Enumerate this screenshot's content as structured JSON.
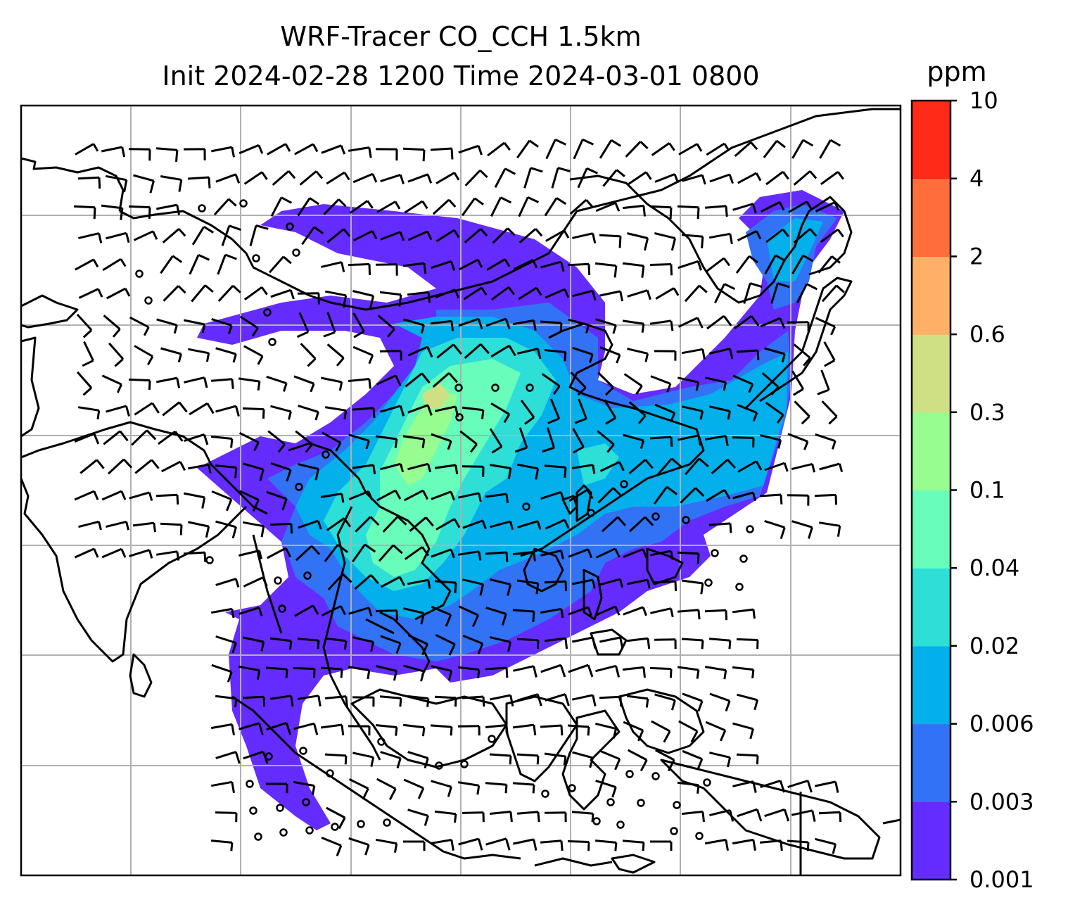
{
  "chart_data": {
    "type": "heatmap",
    "title": "WRF-Tracer CO_CCH 1.5km",
    "subtitle": "Init 2024-02-28 1200 Time 2024-03-01 0800",
    "colorbar": {
      "unit": "ppm",
      "levels": [
        "0.001",
        "0.003",
        "0.006",
        "0.02",
        "0.04",
        "0.1",
        "0.3",
        "0.6",
        "2",
        "4",
        "10"
      ],
      "colors": [
        "#652cff",
        "#3273f6",
        "#03b0ec",
        "#2edfd8",
        "#68fdba",
        "#97fd90",
        "#cfe084",
        "#ffb066",
        "#fe6e3a",
        "#ff2a18"
      ]
    },
    "grid": true,
    "overlays": [
      "coastlines",
      "country borders",
      "wind barbs"
    ]
  }
}
